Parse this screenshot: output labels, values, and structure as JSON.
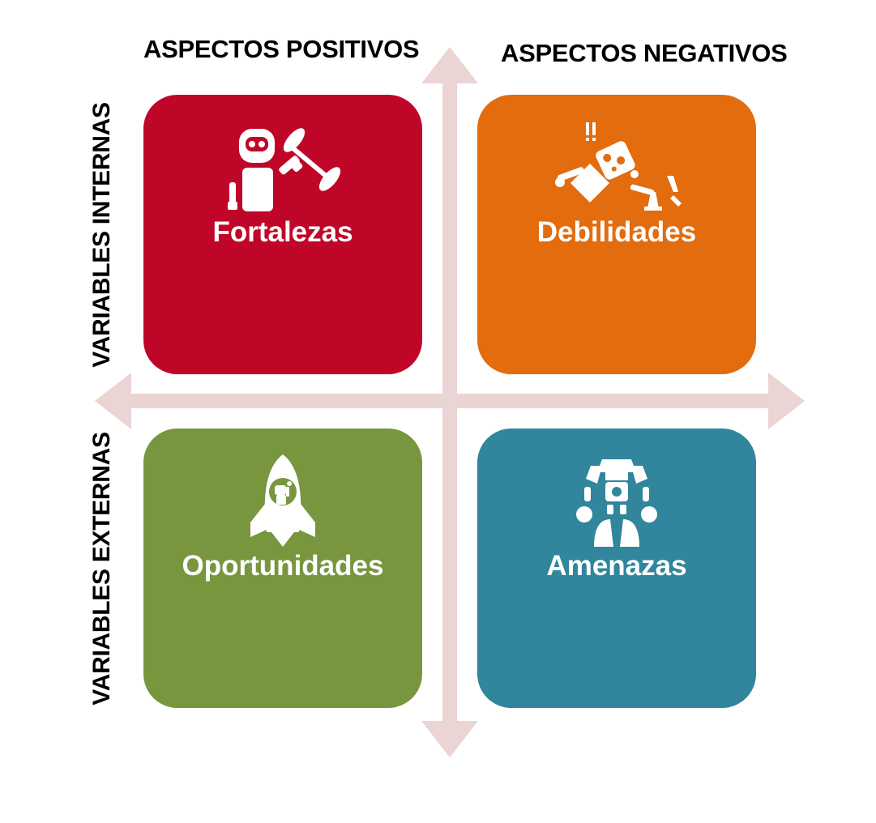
{
  "headers": {
    "positive": "ASPECTOS POSITIVOS",
    "negative": "ASPECTOS NEGATIVOS"
  },
  "side_labels": {
    "internal": "VARIABLES INTERNAS",
    "external": "VARIABLES EXTERNAS"
  },
  "quadrants": [
    {
      "id": "strengths",
      "label": "Fortalezas",
      "color": "#c00628",
      "icon": "robot-lifting-barbell-icon"
    },
    {
      "id": "weaknesses",
      "label": "Debilidades",
      "color": "#e36c0e",
      "icon": "broken-robot-icon"
    },
    {
      "id": "opportunities",
      "label": "Oportunidades",
      "color": "#78963e",
      "icon": "rocket-with-robot-icon"
    },
    {
      "id": "threats",
      "label": "Amenazas",
      "color": "#31859c",
      "icon": "giant-robot-icon"
    }
  ],
  "colors": {
    "axis": "#ead4d4",
    "text": "#000000",
    "label": "#ffffff"
  }
}
